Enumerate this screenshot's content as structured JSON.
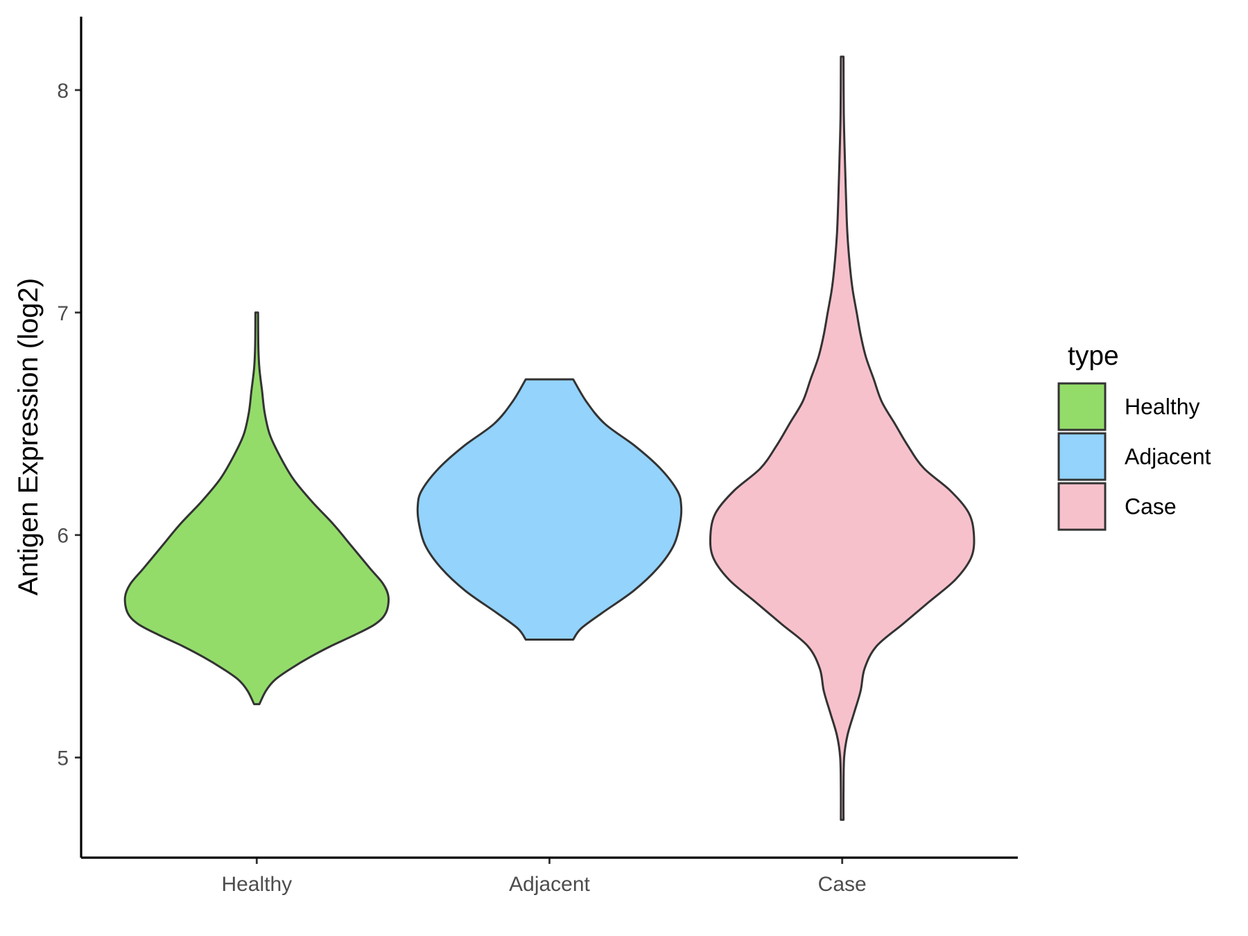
{
  "chart_data": {
    "type": "violin",
    "title": "",
    "xlabel": "",
    "ylabel": "Antigen Expression (log2)",
    "ylim": [
      4.55,
      8.33
    ],
    "yticks": [
      5,
      6,
      7,
      8
    ],
    "categories": [
      "Healthy",
      "Adjacent",
      "Case"
    ],
    "legend": {
      "title": "type",
      "position": "right",
      "entries": [
        "Healthy",
        "Adjacent",
        "Case"
      ]
    },
    "grid": false,
    "series": [
      {
        "name": "Healthy",
        "color": "#93dc6a",
        "density": [
          [
            5.24,
            0.02
          ],
          [
            5.3,
            0.07
          ],
          [
            5.35,
            0.14
          ],
          [
            5.4,
            0.26
          ],
          [
            5.45,
            0.4
          ],
          [
            5.5,
            0.56
          ],
          [
            5.55,
            0.74
          ],
          [
            5.6,
            0.9
          ],
          [
            5.65,
            0.98
          ],
          [
            5.72,
            1.0
          ],
          [
            5.78,
            0.96
          ],
          [
            5.85,
            0.86
          ],
          [
            5.95,
            0.72
          ],
          [
            6.05,
            0.58
          ],
          [
            6.15,
            0.42
          ],
          [
            6.25,
            0.28
          ],
          [
            6.35,
            0.18
          ],
          [
            6.45,
            0.1
          ],
          [
            6.55,
            0.06
          ],
          [
            6.65,
            0.04
          ],
          [
            6.75,
            0.02
          ],
          [
            6.85,
            0.012
          ],
          [
            7.0,
            0.01
          ]
        ]
      },
      {
        "name": "Adjacent",
        "color": "#93d3fc",
        "density": [
          [
            5.53,
            0.18
          ],
          [
            5.58,
            0.24
          ],
          [
            5.65,
            0.4
          ],
          [
            5.75,
            0.64
          ],
          [
            5.85,
            0.82
          ],
          [
            5.95,
            0.94
          ],
          [
            6.05,
            0.99
          ],
          [
            6.13,
            1.0
          ],
          [
            6.2,
            0.97
          ],
          [
            6.3,
            0.84
          ],
          [
            6.4,
            0.65
          ],
          [
            6.5,
            0.42
          ],
          [
            6.6,
            0.28
          ],
          [
            6.7,
            0.18
          ]
        ]
      },
      {
        "name": "Case",
        "color": "#f7c1cc",
        "density": [
          [
            4.72,
            0.01
          ],
          [
            4.85,
            0.01
          ],
          [
            5.0,
            0.015
          ],
          [
            5.1,
            0.04
          ],
          [
            5.2,
            0.09
          ],
          [
            5.3,
            0.14
          ],
          [
            5.4,
            0.17
          ],
          [
            5.5,
            0.26
          ],
          [
            5.6,
            0.46
          ],
          [
            5.7,
            0.66
          ],
          [
            5.8,
            0.86
          ],
          [
            5.9,
            0.98
          ],
          [
            6.0,
            1.0
          ],
          [
            6.1,
            0.96
          ],
          [
            6.2,
            0.82
          ],
          [
            6.3,
            0.62
          ],
          [
            6.4,
            0.5
          ],
          [
            6.5,
            0.4
          ],
          [
            6.6,
            0.3
          ],
          [
            6.7,
            0.24
          ],
          [
            6.8,
            0.18
          ],
          [
            6.9,
            0.14
          ],
          [
            7.0,
            0.11
          ],
          [
            7.1,
            0.08
          ],
          [
            7.2,
            0.06
          ],
          [
            7.35,
            0.04
          ],
          [
            7.5,
            0.03
          ],
          [
            7.7,
            0.02
          ],
          [
            7.9,
            0.012
          ],
          [
            8.15,
            0.01
          ]
        ]
      }
    ]
  }
}
